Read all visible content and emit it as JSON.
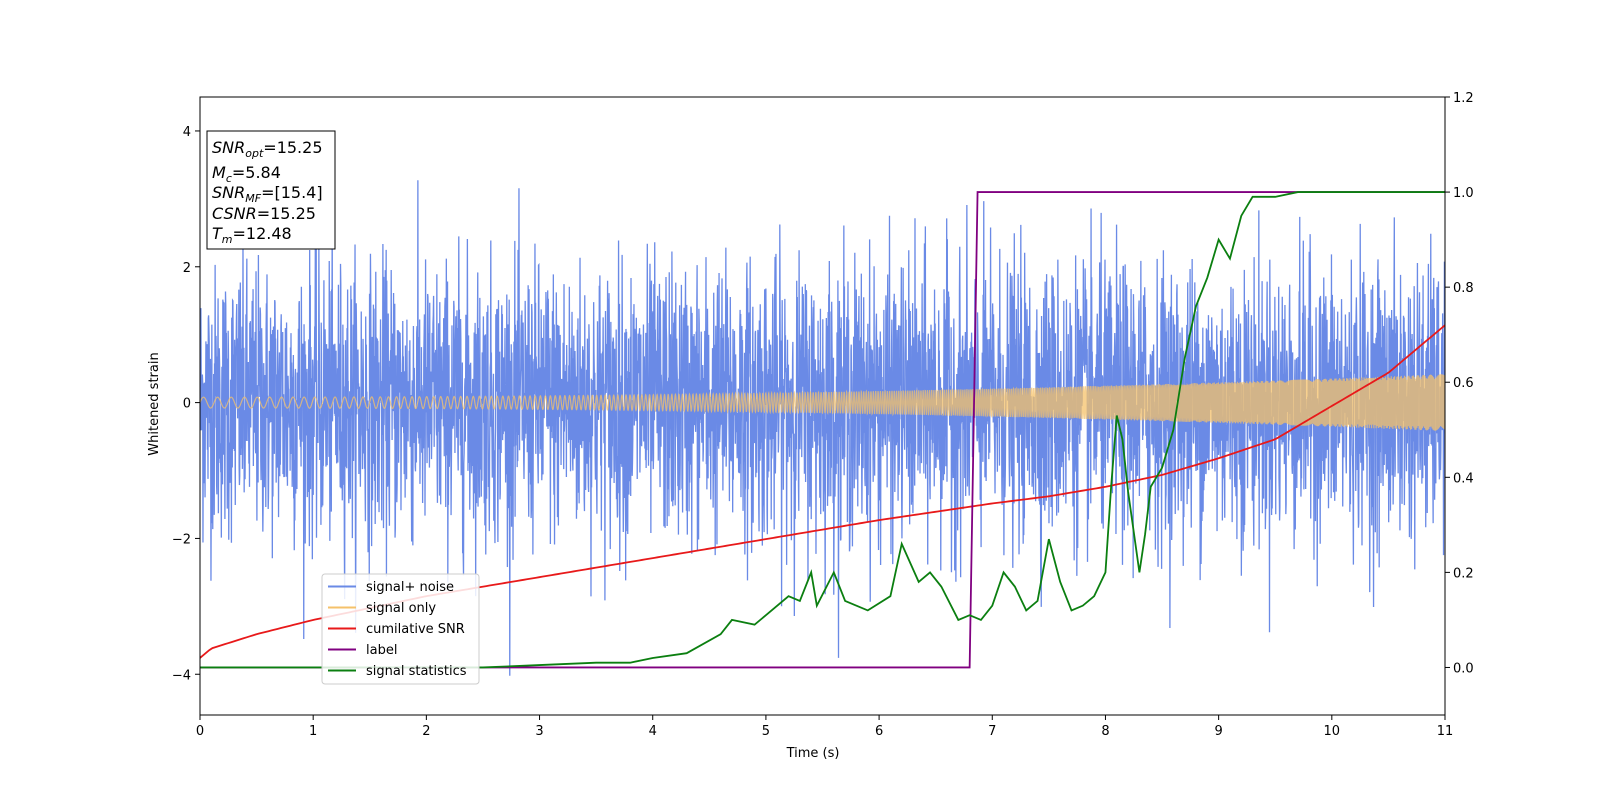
{
  "chart_data": {
    "type": "line",
    "xlabel": "Time (s)",
    "ylabel": "Whitened strain",
    "ylabel_right": "",
    "xlim": [
      0,
      11
    ],
    "ylim": [
      -4.6,
      4.5
    ],
    "ylim_right": [
      -0.1,
      1.2
    ],
    "x_ticks": [
      "0",
      "1",
      "2",
      "3",
      "4",
      "5",
      "6",
      "7",
      "8",
      "9",
      "10",
      "11"
    ],
    "y_ticks": [
      "4",
      "2",
      "0",
      "−2",
      "−4"
    ],
    "y_ticks_right": [
      "1.2",
      "1.0",
      "0.8",
      "0.6",
      "0.4",
      "0.2",
      "0.0"
    ],
    "grid": false,
    "legend_position": "lower-left",
    "info_box": [
      {
        "italic": "SNR",
        "sub": "opt",
        "rest": "=15.25"
      },
      {
        "italic": "M",
        "sub": "c",
        "rest": "=5.84"
      },
      {
        "italic": "SNR",
        "sub": "MF",
        "rest": "=[15.4]"
      },
      {
        "italic": "CSNR",
        "sub": "",
        "rest": "=15.25"
      },
      {
        "italic": "T",
        "sub": "m",
        "rest": "=12.48"
      }
    ],
    "series": [
      {
        "name": "signal+ noise",
        "color": "#6a8ae6",
        "axis": "left",
        "kind": "noise",
        "sigma": 1.0
      },
      {
        "name": "signal only",
        "color": "#f5c16a",
        "axis": "left",
        "kind": "chirp",
        "amplitude_start": 0.08,
        "amplitude_end": 0.42
      },
      {
        "name": "cumilative SNR",
        "color": "#e8191a",
        "axis": "right",
        "x": [
          0,
          0.1,
          0.5,
          1,
          2,
          3,
          4,
          5,
          6,
          7,
          7.5,
          8,
          8.5,
          9,
          9.5,
          10,
          10.5,
          11
        ],
        "values": [
          0.02,
          0.04,
          0.07,
          0.1,
          0.15,
          0.19,
          0.23,
          0.27,
          0.31,
          0.345,
          0.36,
          0.38,
          0.405,
          0.44,
          0.48,
          0.55,
          0.62,
          0.72
        ]
      },
      {
        "name": "label",
        "color": "#800080",
        "axis": "right",
        "x": [
          0,
          6.8,
          6.87,
          11
        ],
        "values": [
          0.0,
          0.0,
          1.0,
          1.0
        ]
      },
      {
        "name": "signal statistics",
        "color": "#0b7f10",
        "axis": "right",
        "x": [
          0,
          2.5,
          3,
          3.5,
          3.8,
          4,
          4.3,
          4.6,
          4.7,
          4.9,
          5,
          5.2,
          5.3,
          5.4,
          5.45,
          5.6,
          5.7,
          5.8,
          5.9,
          6.1,
          6.2,
          6.35,
          6.45,
          6.55,
          6.7,
          6.8,
          6.9,
          7.0,
          7.1,
          7.2,
          7.3,
          7.4,
          7.5,
          7.6,
          7.7,
          7.8,
          7.9,
          8.0,
          8.05,
          8.1,
          8.15,
          8.2,
          8.3,
          8.35,
          8.4,
          8.5,
          8.6,
          8.7,
          8.8,
          8.9,
          9.0,
          9.1,
          9.2,
          9.3,
          9.5,
          9.7,
          10,
          11
        ],
        "values": [
          0.0,
          0.0,
          0.005,
          0.01,
          0.01,
          0.02,
          0.03,
          0.07,
          0.1,
          0.09,
          0.11,
          0.15,
          0.14,
          0.2,
          0.13,
          0.2,
          0.14,
          0.13,
          0.12,
          0.15,
          0.26,
          0.18,
          0.2,
          0.17,
          0.1,
          0.11,
          0.1,
          0.13,
          0.2,
          0.17,
          0.12,
          0.14,
          0.27,
          0.18,
          0.12,
          0.13,
          0.15,
          0.2,
          0.38,
          0.53,
          0.48,
          0.37,
          0.2,
          0.28,
          0.38,
          0.42,
          0.5,
          0.65,
          0.76,
          0.82,
          0.9,
          0.86,
          0.95,
          0.99,
          0.99,
          1.0,
          1.0,
          1.0
        ]
      }
    ]
  }
}
